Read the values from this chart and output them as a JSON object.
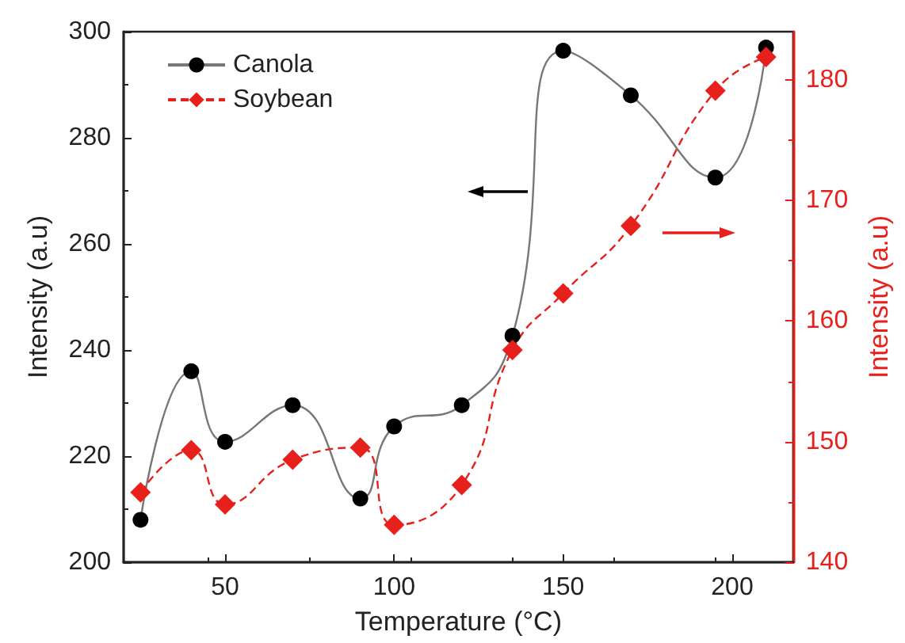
{
  "chart_data": {
    "type": "line",
    "xlabel": "Temperature (°C)",
    "ylabel": "Intensity (a.u)",
    "y2label": "Intensity (a.u)",
    "x": [
      25,
      40,
      50,
      70,
      90,
      100,
      120,
      135,
      150,
      170,
      195,
      210
    ],
    "xlim": [
      20,
      218
    ],
    "xticks": [
      50,
      100,
      150,
      200
    ],
    "ylim": [
      200,
      300
    ],
    "yticks": [
      200,
      220,
      240,
      260,
      280,
      300
    ],
    "y2lim": [
      140,
      184
    ],
    "y2ticks": [
      140,
      150,
      160,
      170,
      180
    ],
    "series": [
      {
        "name": "Canola",
        "color": "#000000",
        "marker": "circle",
        "line_style": "solid",
        "values": [
          208,
          236,
          222.7,
          229.6,
          212,
          225.6,
          229.6,
          242.7,
          296.4,
          288,
          272.5,
          297
        ]
      },
      {
        "name": "Soybean",
        "color": "#e8201c",
        "marker": "diamond",
        "line_style": "dashed",
        "axis": "y2",
        "values": [
          145.8,
          149.3,
          144.8,
          148.5,
          149.5,
          143.1,
          146.4,
          157.6,
          162.3,
          167.9,
          179.1,
          181.9
        ]
      }
    ],
    "legend": "top left",
    "grid": false
  }
}
